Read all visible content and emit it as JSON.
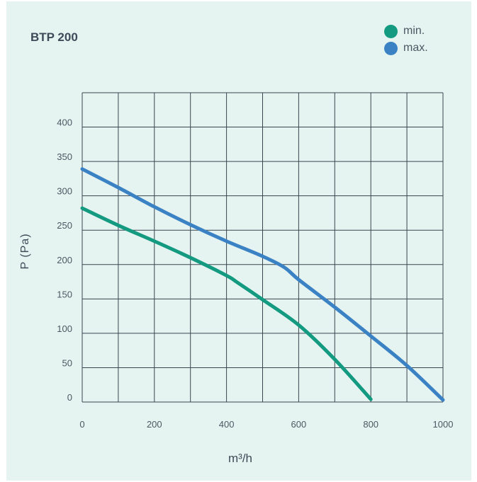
{
  "chart_data": {
    "type": "line",
    "title": "BTP 200",
    "xlabel": "m³/h",
    "ylabel": "P (Pa)",
    "xlim": [
      0,
      1000
    ],
    "ylim": [
      0,
      450
    ],
    "xticks": [
      0,
      200,
      400,
      600,
      800,
      1000
    ],
    "yticks": [
      0,
      50,
      100,
      150,
      200,
      250,
      300,
      350,
      400
    ],
    "grid": true,
    "legend_position": "top-right",
    "series": [
      {
        "name": "min.",
        "color": "#139a80",
        "points": [
          [
            0,
            282
          ],
          [
            100,
            257
          ],
          [
            200,
            234
          ],
          [
            300,
            210
          ],
          [
            400,
            184
          ],
          [
            430,
            174
          ],
          [
            500,
            149
          ],
          [
            600,
            112
          ],
          [
            700,
            62
          ],
          [
            800,
            4
          ]
        ]
      },
      {
        "name": "max.",
        "color": "#3b82c4",
        "points": [
          [
            0,
            339
          ],
          [
            100,
            312
          ],
          [
            200,
            284
          ],
          [
            300,
            258
          ],
          [
            400,
            234
          ],
          [
            500,
            212
          ],
          [
            560,
            196
          ],
          [
            600,
            178
          ],
          [
            700,
            138
          ],
          [
            800,
            96
          ],
          [
            900,
            53
          ],
          [
            1000,
            3
          ]
        ]
      }
    ]
  }
}
